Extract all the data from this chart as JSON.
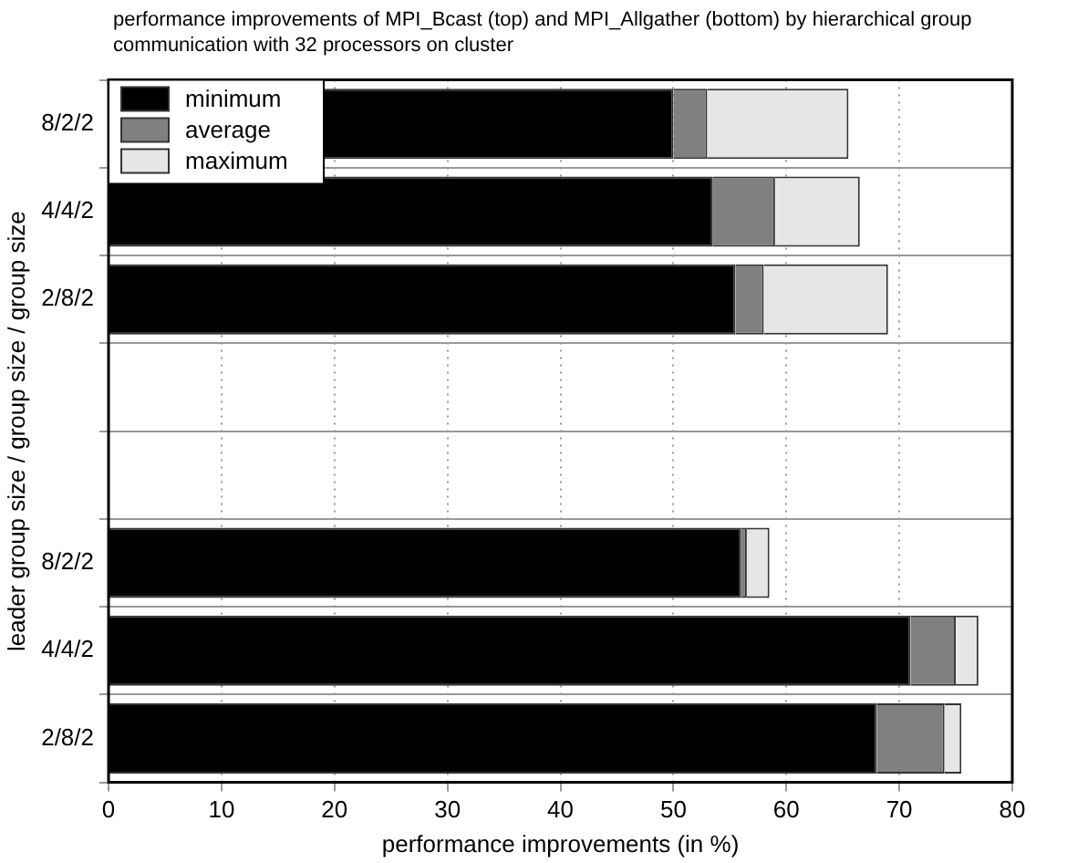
{
  "chart_data": {
    "type": "bar",
    "orientation": "horizontal",
    "stacked": true,
    "title": "performance improvements of MPI_Bcast (top) and MPI_Allgather (bottom) by hierarchical group communication with 32 processors on cluster",
    "xlabel": "performance improvements (in %)",
    "ylabel": "leader group size / group size / group size",
    "categories": [
      "8/2/2",
      "4/4/2",
      "2/8/2",
      null,
      null,
      "8/2/2",
      "4/4/2",
      "2/8/2"
    ],
    "series": [
      {
        "name": "minimum",
        "color": "#000000",
        "values": [
          50,
          53.5,
          55.5,
          null,
          null,
          56,
          71,
          68
        ]
      },
      {
        "name": "average",
        "color": "#808080",
        "values": [
          3,
          5.5,
          2.5,
          null,
          null,
          0.5,
          4,
          6
        ]
      },
      {
        "name": "maximum",
        "color": "#e6e6e6",
        "values": [
          12.5,
          7.5,
          11,
          null,
          null,
          2,
          2,
          1.5
        ]
      }
    ],
    "xlim": [
      0,
      80
    ],
    "xticks": [
      0,
      10,
      20,
      30,
      40,
      50,
      60,
      70,
      80
    ],
    "grid": true,
    "legend": "top left"
  }
}
